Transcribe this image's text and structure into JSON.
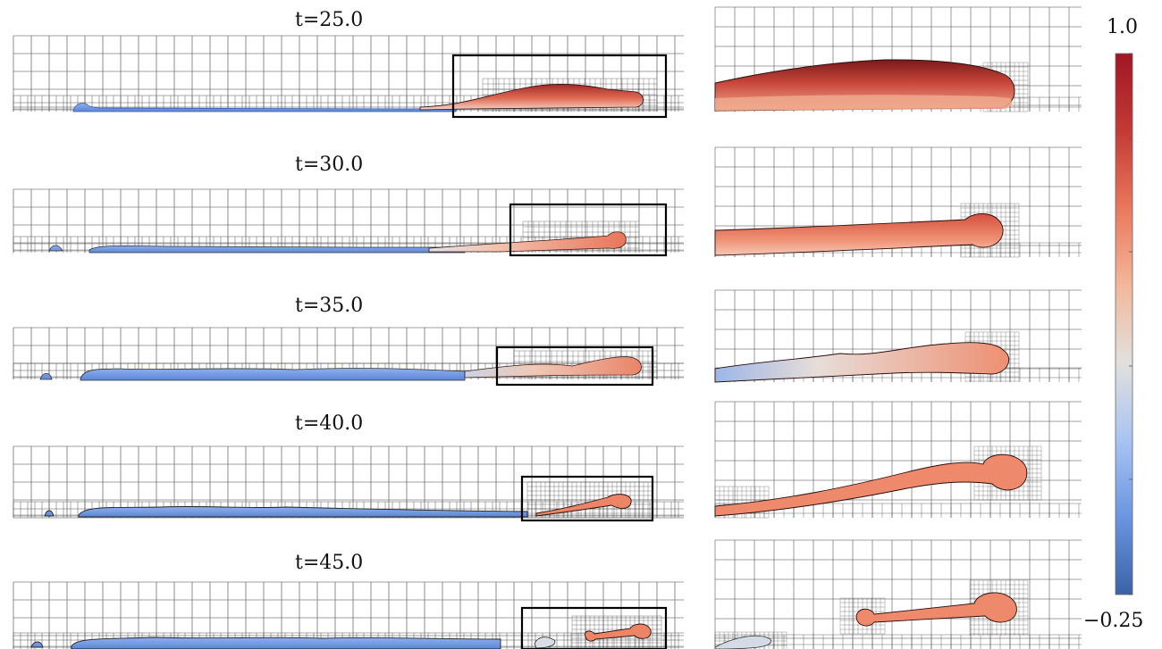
{
  "panels": [
    {
      "time_label": "t=25.0"
    },
    {
      "time_label": "t=30.0"
    },
    {
      "time_label": "t=35.0"
    },
    {
      "time_label": "t=40.0"
    },
    {
      "time_label": "t=45.0"
    }
  ],
  "colorbar": {
    "max_label": "1.0",
    "min_label": "−0.25",
    "min": -0.25,
    "max": 1.0,
    "colors": [
      "#3b62a8",
      "#6b95e0",
      "#a9c4f2",
      "#e2e0dd",
      "#f3b79b",
      "#e9785c",
      "#c33a35",
      "#a11624"
    ]
  }
}
